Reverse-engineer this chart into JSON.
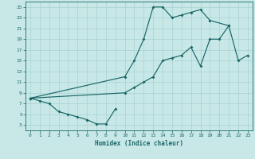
{
  "xlabel": "Humidex (Indice chaleur)",
  "bg_color": "#c8e8e8",
  "line_color": "#1a6666",
  "grid_color": "#a8d0d0",
  "xlim": [
    -0.5,
    23.5
  ],
  "ylim": [
    2,
    26
  ],
  "xticks": [
    0,
    1,
    2,
    3,
    4,
    5,
    6,
    7,
    8,
    9,
    10,
    11,
    12,
    13,
    14,
    15,
    16,
    17,
    18,
    19,
    20,
    21,
    22,
    23
  ],
  "yticks": [
    3,
    5,
    7,
    9,
    11,
    13,
    15,
    17,
    19,
    21,
    23,
    25
  ],
  "series": [
    {
      "x": [
        0,
        1,
        2,
        3,
        4,
        5,
        6,
        7,
        8,
        9
      ],
      "y": [
        8.0,
        7.5,
        7.0,
        5.5,
        5.0,
        4.5,
        4.0,
        3.2,
        3.2,
        6.0
      ]
    },
    {
      "x": [
        0,
        10,
        11,
        12,
        13,
        14,
        15,
        16,
        17,
        18,
        19,
        20,
        21,
        22,
        23
      ],
      "y": [
        8.0,
        9.0,
        10.0,
        11.0,
        12.0,
        15.0,
        15.5,
        16.0,
        17.5,
        14.0,
        19.0,
        19.0,
        21.5,
        15.0,
        16.0
      ]
    },
    {
      "x": [
        0,
        10,
        11,
        12,
        13,
        14,
        15,
        16,
        17,
        18,
        19,
        21
      ],
      "y": [
        8.0,
        12.0,
        15.0,
        19.0,
        25.0,
        25.0,
        23.0,
        23.5,
        24.0,
        24.5,
        22.5,
        21.5
      ]
    }
  ]
}
